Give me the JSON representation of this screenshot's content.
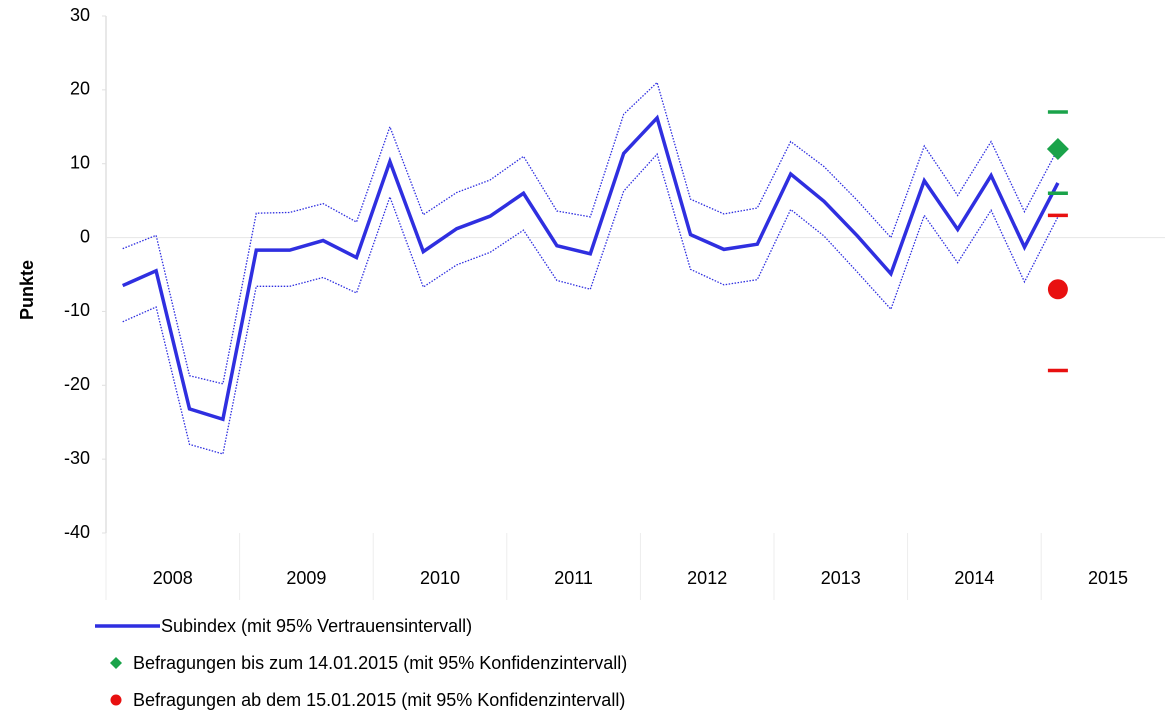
{
  "chart_data": {
    "type": "line",
    "ylabel": "Punkte",
    "ylim": [
      -40,
      30
    ],
    "yticks": [
      -40,
      -30,
      -20,
      -10,
      0,
      10,
      20,
      30
    ],
    "year_labels": [
      "2008",
      "2009",
      "2010",
      "2011",
      "2012",
      "2013",
      "2014",
      "2015"
    ],
    "series": [
      {
        "name": "Subindex (mit 95% Vertrauensintervall)",
        "color": "#2f2fe0",
        "values": [
          -6.5,
          -4.5,
          -23.2,
          -24.6,
          -1.7,
          -1.7,
          -0.4,
          -2.7,
          10.3,
          -1.9,
          1.2,
          2.9,
          6.0,
          -1.1,
          -2.2,
          11.4,
          16.2,
          0.4,
          -1.6,
          -0.9,
          8.6,
          4.9,
          0.2,
          -4.9,
          7.7,
          1.1,
          8.4,
          -1.3,
          7.4
        ],
        "upper": [
          -1.5,
          0.3,
          -18.7,
          -19.8,
          3.3,
          3.4,
          4.6,
          2.1,
          15.0,
          3.1,
          6.1,
          7.8,
          11.0,
          3.6,
          2.8,
          16.7,
          21.0,
          5.2,
          3.2,
          4.0,
          13.0,
          9.6,
          5.0,
          0.0,
          12.4,
          5.7,
          13.0,
          3.5,
          12.0
        ],
        "lower": [
          -11.4,
          -9.4,
          -28.0,
          -29.3,
          -6.6,
          -6.6,
          -5.4,
          -7.5,
          5.5,
          -6.7,
          -3.7,
          -2.0,
          1.0,
          -5.8,
          -7.0,
          6.3,
          11.3,
          -4.3,
          -6.4,
          -5.7,
          3.8,
          0.2,
          -4.7,
          -9.7,
          3.0,
          -3.4,
          3.7,
          -6.0,
          2.8
        ]
      }
    ],
    "points": [
      {
        "name": "Befragungen bis zum 14.01.2015 (mit 95% Konfidenzintervall)",
        "color": "#1aa34a",
        "marker": "diamond",
        "value": 12,
        "ci": [
          6,
          17
        ]
      },
      {
        "name": "Befragungen ab dem 15.01.2015 (mit 95% Konfidenzintervall)",
        "color": "#e81010",
        "marker": "circle",
        "value": -7,
        "ci": [
          -18,
          3
        ]
      }
    ]
  }
}
